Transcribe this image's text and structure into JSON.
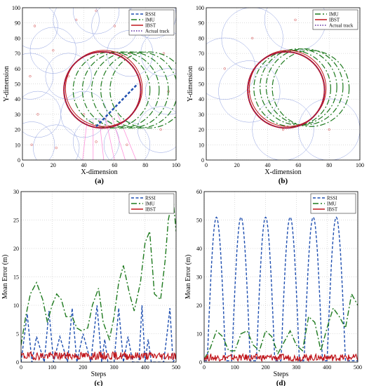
{
  "colors": {
    "rssi": "#1f4fb0",
    "imu": "#1e7a1e",
    "ibst": "#c0161c",
    "actual": "#5b2a9e",
    "anchor": "#8fa0e0",
    "pink": "#ff66cc"
  },
  "chart_data": [
    {
      "type": "line",
      "panel_label": "(a)",
      "xlabel": "X-dimension",
      "ylabel": "Y-dimension",
      "xlim": [
        0,
        100
      ],
      "ylim": [
        0,
        100
      ],
      "xticks": [
        "0",
        "20",
        "40",
        "60",
        "80",
        "100"
      ],
      "yticks": [
        "0",
        "10",
        "20",
        "30",
        "40",
        "50",
        "60",
        "70",
        "80",
        "90",
        "100"
      ],
      "legend_position": "top-right",
      "series": [
        {
          "name": "RSSI",
          "style": "dashed",
          "color": "#1f4fb0"
        },
        {
          "name": "IMU",
          "style": "dash-dot",
          "color": "#1e7a1e"
        },
        {
          "name": "IBST",
          "style": "solid",
          "color": "#c0161c"
        },
        {
          "name": "Actual track",
          "style": "dotted",
          "color": "#5b2a9e"
        }
      ],
      "actual_track": {
        "center": [
          52,
          46
        ],
        "radius": 25
      },
      "imu_tracks": {
        "centers": [
          [
            52,
            46
          ],
          [
            58,
            46
          ],
          [
            64,
            46
          ],
          [
            70,
            46
          ],
          [
            76,
            46
          ],
          [
            82,
            46
          ]
        ],
        "radius": 25
      },
      "rssi_segment": {
        "from": [
          48,
          22
        ],
        "to": [
          75,
          50
        ]
      },
      "anchors": [
        [
          8,
          88
        ],
        [
          20,
          72
        ],
        [
          35,
          92
        ],
        [
          48,
          98
        ],
        [
          60,
          88
        ],
        [
          85,
          95
        ],
        [
          92,
          70
        ],
        [
          5,
          55
        ],
        [
          10,
          30
        ],
        [
          6,
          10
        ],
        [
          22,
          8
        ],
        [
          48,
          12
        ],
        [
          68,
          10
        ],
        [
          90,
          20
        ],
        [
          30,
          55
        ],
        [
          40,
          30
        ],
        [
          70,
          70
        ],
        [
          95,
          45
        ]
      ],
      "anchor_radius": 15
    },
    {
      "type": "line",
      "panel_label": "(b)",
      "xlabel": "X-dimension",
      "ylabel": "Y-dimension",
      "xlim": [
        0,
        100
      ],
      "ylim": [
        0,
        100
      ],
      "xticks": [
        "0",
        "20",
        "40",
        "60",
        "80",
        "100"
      ],
      "yticks": [
        "0",
        "10",
        "20",
        "30",
        "40",
        "50",
        "60",
        "70",
        "80",
        "90",
        "100"
      ],
      "legend_position": "top-right",
      "series": [
        {
          "name": "IMU",
          "style": "dash-dot",
          "color": "#1e7a1e"
        },
        {
          "name": "IBST",
          "style": "solid",
          "color": "#c0161c"
        },
        {
          "name": "Actual track",
          "style": "dotted",
          "color": "#5b2a9e"
        }
      ],
      "actual_track": {
        "center": [
          52,
          46
        ],
        "radius": 25
      },
      "imu_tracks": {
        "centers": [
          [
            52,
            46
          ],
          [
            56,
            47
          ],
          [
            60,
            48
          ],
          [
            64,
            48
          ],
          [
            68,
            47
          ]
        ],
        "radius": 25
      },
      "anchors": [
        [
          30,
          80
        ],
        [
          58,
          92
        ],
        [
          12,
          60
        ],
        [
          28,
          45
        ],
        [
          80,
          20
        ],
        [
          50,
          20
        ]
      ],
      "anchor_radius": 20
    },
    {
      "type": "line",
      "panel_label": "(c)",
      "xlabel": "Steps",
      "ylabel": "Mean Error (m)",
      "xlim": [
        0,
        500
      ],
      "ylim": [
        0,
        30
      ],
      "xticks": [
        "0",
        "100",
        "200",
        "300",
        "400",
        "500"
      ],
      "yticks": [
        "0",
        "5",
        "10",
        "15",
        "20",
        "25",
        "30"
      ],
      "legend_position": "top-right",
      "series": [
        {
          "name": "RSSI",
          "style": "dashed",
          "color": "#1f4fb0",
          "x": [
            0,
            20,
            35,
            50,
            75,
            90,
            105,
            125,
            150,
            165,
            180,
            200,
            225,
            245,
            260,
            270,
            280,
            300,
            315,
            330,
            345,
            360,
            380,
            390,
            400,
            410,
            420,
            440,
            460,
            470,
            480,
            490,
            500
          ],
          "y": [
            0,
            8.5,
            0,
            4.5,
            0,
            9,
            0,
            4.5,
            0,
            9.5,
            0,
            5,
            0,
            10,
            0,
            4,
            0,
            0,
            9.5,
            0,
            4.5,
            0,
            0,
            10,
            0,
            4,
            0,
            0,
            0,
            4.5,
            9.5,
            0,
            1
          ]
        },
        {
          "name": "IMU",
          "style": "dash-dot",
          "color": "#1e7a1e",
          "x": [
            0,
            15,
            30,
            50,
            70,
            85,
            100,
            115,
            130,
            145,
            165,
            180,
            195,
            215,
            230,
            250,
            265,
            285,
            300,
            315,
            330,
            350,
            365,
            385,
            400,
            415,
            430,
            450,
            465,
            475,
            490,
            500
          ],
          "y": [
            3,
            8,
            12,
            14,
            11,
            7,
            10,
            12,
            11,
            8,
            8,
            6,
            5.5,
            6,
            10,
            13,
            7,
            4,
            8,
            14,
            17,
            12,
            9,
            14,
            21,
            23,
            12,
            11,
            18,
            25,
            29,
            23
          ]
        },
        {
          "name": "IBST",
          "style": "solid",
          "color": "#c0161c",
          "mean": 1.1,
          "noise": 0.7
        }
      ]
    },
    {
      "type": "line",
      "panel_label": "(d)",
      "xlabel": "Steps",
      "ylabel": "Mean Error (m)",
      "xlim": [
        0,
        500
      ],
      "ylim": [
        0,
        60
      ],
      "xticks": [
        "0",
        "100",
        "200",
        "300",
        "400",
        "500"
      ],
      "yticks": [
        "0",
        "10",
        "20",
        "30",
        "40",
        "50",
        "60"
      ],
      "legend_position": "top-right",
      "series": [
        {
          "name": "RSSI",
          "style": "dashed",
          "color": "#1f4fb0",
          "peaks": [
            40,
            120,
            200,
            280,
            355,
            430
          ],
          "peak_value": 51,
          "half_width": 30
        },
        {
          "name": "IMU",
          "style": "dash-dot",
          "color": "#1e7a1e",
          "x": [
            0,
            20,
            40,
            60,
            80,
            100,
            120,
            140,
            160,
            180,
            200,
            220,
            240,
            260,
            280,
            300,
            320,
            340,
            360,
            380,
            400,
            420,
            440,
            460,
            480,
            500
          ],
          "y": [
            1,
            5,
            11,
            9,
            4,
            4,
            10,
            11,
            6,
            4,
            11,
            9,
            3,
            7,
            11,
            6,
            4,
            16,
            14,
            4,
            12,
            19,
            16,
            12,
            24,
            20
          ]
        },
        {
          "name": "IBST",
          "style": "solid",
          "color": "#c0161c",
          "mean": 1.6,
          "noise": 1.2
        }
      ]
    }
  ]
}
